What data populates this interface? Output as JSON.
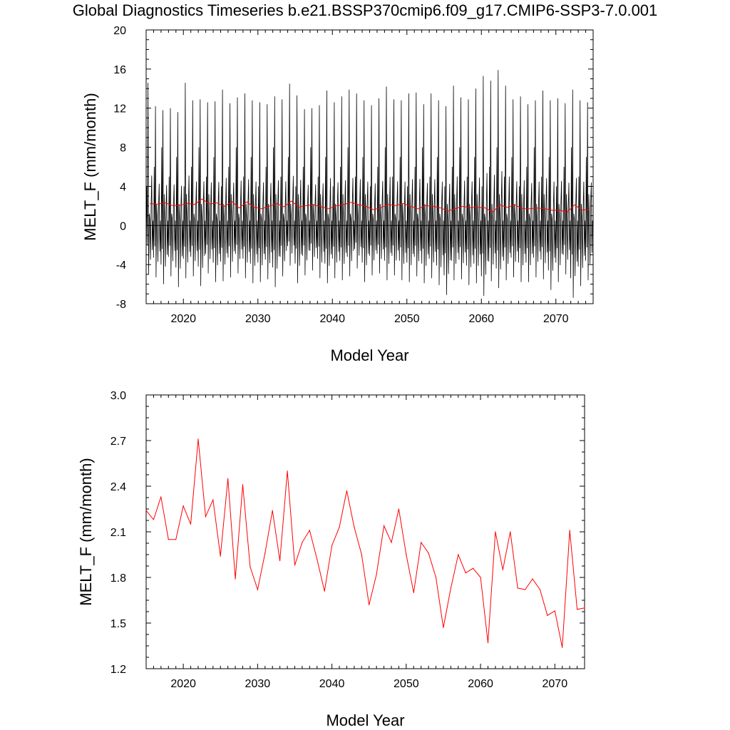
{
  "title": "Global Diagnostics Timeseries b.e21.BSSP370cmip6.f09_g17.CMIP6-SSP3-7.0.001",
  "colors": {
    "monthly": "#000000",
    "annual": "#ff0000",
    "zero_line": "#000000"
  },
  "chart_data": [
    {
      "type": "line",
      "xlabel": "Model Year",
      "ylabel": "MELT_F (mm/month)",
      "xlim": [
        2015,
        2075
      ],
      "ylim": [
        -8,
        20
      ],
      "xticks": [
        2020,
        2030,
        2040,
        2050,
        2060,
        2070
      ],
      "yticks": [
        -8,
        -4,
        0,
        4,
        8,
        12,
        16,
        20
      ],
      "zero_line": true,
      "monthly_envelope": {
        "years": [
          2015,
          2016,
          2017,
          2018,
          2019,
          2020,
          2021,
          2022,
          2023,
          2024,
          2025,
          2026,
          2027,
          2028,
          2029,
          2030,
          2031,
          2032,
          2033,
          2034,
          2035,
          2036,
          2037,
          2038,
          2039,
          2040,
          2041,
          2042,
          2043,
          2044,
          2045,
          2046,
          2047,
          2048,
          2049,
          2050,
          2051,
          2052,
          2053,
          2054,
          2055,
          2056,
          2057,
          2058,
          2059,
          2060,
          2061,
          2062,
          2063,
          2064,
          2065,
          2066,
          2067,
          2068,
          2069,
          2070,
          2071,
          2072,
          2073,
          2074
        ],
        "max": [
          14.6,
          12.2,
          11.8,
          12.0,
          11.6,
          14.6,
          12.8,
          12.9,
          12.6,
          12.7,
          13.9,
          12.5,
          13.1,
          13.5,
          12.8,
          12.6,
          12.4,
          13.2,
          12.9,
          14.5,
          13.3,
          11.9,
          12.0,
          12.3,
          13.8,
          12.6,
          13.2,
          13.9,
          13.5,
          12.8,
          12.3,
          13.0,
          14.2,
          12.9,
          12.8,
          13.5,
          13.6,
          12.4,
          13.5,
          12.8,
          12.2,
          14.3,
          13.1,
          12.9,
          14.0,
          15.3,
          14.8,
          15.9,
          14.3,
          12.9,
          13.2,
          12.4,
          12.8,
          13.8,
          12.8,
          13.0,
          12.5,
          13.9,
          12.8,
          12.6
        ],
        "min": [
          -5.0,
          -5.3,
          -6.0,
          -5.2,
          -6.3,
          -5.4,
          -5.2,
          -6.2,
          -4.9,
          -5.8,
          -5.7,
          -5.3,
          -4.9,
          -5.4,
          -5.9,
          -5.8,
          -5.5,
          -6.3,
          -5.2,
          -4.1,
          -5.9,
          -5.1,
          -4.6,
          -5.4,
          -5.9,
          -5.4,
          -5.6,
          -5.2,
          -4.4,
          -5.8,
          -5.1,
          -4.9,
          -5.6,
          -5.1,
          -5.6,
          -5.8,
          -5.2,
          -5.9,
          -5.4,
          -6.1,
          -7.1,
          -5.6,
          -5.5,
          -6.1,
          -5.9,
          -7.2,
          -5.7,
          -6.4,
          -5.6,
          -5.3,
          -5.8,
          -5.8,
          -5.3,
          -5.5,
          -6.6,
          -5.8,
          -5.0,
          -7.4,
          -6.2,
          -5.6
        ],
        "note_secondary_peak_range": [
          4,
          8
        ]
      },
      "series": [
        {
          "name": "",
          "style": "monthly",
          "color": "#000000"
        },
        {
          "name": "",
          "style": "annual",
          "color": "#ff0000"
        }
      ]
    },
    {
      "type": "line",
      "xlabel": "Model Year",
      "ylabel": "MELT_F (mm/month)",
      "xlim": [
        2015,
        2074
      ],
      "ylim": [
        1.2,
        3.0
      ],
      "xticks": [
        2020,
        2030,
        2040,
        2050,
        2060,
        2070
      ],
      "yticks": [
        1.2,
        1.5,
        1.8,
        2.1,
        2.4,
        2.7,
        3.0
      ],
      "x": [
        2015,
        2016,
        2017,
        2018,
        2019,
        2020,
        2021,
        2022,
        2023,
        2024,
        2025,
        2026,
        2027,
        2028,
        2029,
        2030,
        2031,
        2032,
        2033,
        2034,
        2035,
        2036,
        2037,
        2038,
        2039,
        2040,
        2041,
        2042,
        2043,
        2044,
        2045,
        2046,
        2047,
        2048,
        2049,
        2050,
        2051,
        2052,
        2053,
        2054,
        2055,
        2056,
        2057,
        2058,
        2059,
        2060,
        2061,
        2062,
        2063,
        2064,
        2065,
        2066,
        2067,
        2068,
        2069,
        2070,
        2071,
        2072,
        2073,
        2074
      ],
      "series": [
        {
          "name": "",
          "color": "#ff0000",
          "values": [
            2.24,
            2.18,
            2.33,
            2.05,
            2.05,
            2.27,
            2.15,
            2.71,
            2.2,
            2.31,
            1.94,
            2.45,
            1.79,
            2.41,
            1.87,
            1.72,
            1.96,
            2.24,
            1.91,
            2.5,
            1.88,
            2.03,
            2.11,
            1.92,
            1.71,
            2.01,
            2.13,
            2.37,
            2.13,
            1.95,
            1.62,
            1.82,
            2.14,
            2.03,
            2.25,
            1.95,
            1.7,
            2.03,
            1.96,
            1.8,
            1.47,
            1.73,
            1.95,
            1.83,
            1.86,
            1.8,
            1.37,
            2.1,
            1.85,
            2.1,
            1.73,
            1.72,
            1.79,
            1.72,
            1.55,
            1.58,
            1.34,
            2.11,
            1.59,
            1.6
          ]
        }
      ]
    }
  ]
}
